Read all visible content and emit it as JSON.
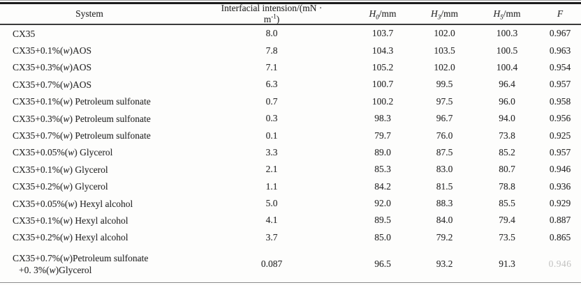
{
  "colors": {
    "text": "#2e2e2e",
    "rule_dark": "#1d1d1d",
    "rule_light": "#9c9c9c"
  },
  "table": {
    "columns": [
      {
        "key": "system",
        "label": "System"
      },
      {
        "key": "tension",
        "label_pre": "Interfacial intension/(mN · m",
        "label_sup": "-1",
        "label_post": ")"
      },
      {
        "key": "h0",
        "label_var": "H",
        "label_sub": "0",
        "label_post": "/mm"
      },
      {
        "key": "h3",
        "label_var": "H",
        "label_sub": "3",
        "label_post": "/mm"
      },
      {
        "key": "h5",
        "label_var": "H",
        "label_sub": "5",
        "label_post": "/mm"
      },
      {
        "key": "f",
        "label": "F"
      }
    ],
    "rows": [
      {
        "system": "CX35",
        "tension": "8.0",
        "h0": "103.7",
        "h3": "102.0",
        "h5": "100.3",
        "f": "0.967"
      },
      {
        "system": "CX35+0.1%(w)AOS",
        "tension": "7.8",
        "h0": "104.3",
        "h3": "103.5",
        "h5": "100.5",
        "f": "0.963"
      },
      {
        "system": "CX35+0.3%(w)AOS",
        "tension": "7.1",
        "h0": "105.2",
        "h3": "102.0",
        "h5": "100.4",
        "f": "0.954"
      },
      {
        "system": "CX35+0.7%(w)AOS",
        "tension": "6.3",
        "h0": "100.7",
        "h3": "99.5",
        "h5": "96.4",
        "f": "0.957"
      },
      {
        "system": "CX35+0.1%(w) Petroleum sulfonate",
        "tension": "0.7",
        "h0": "100.2",
        "h3": "97.5",
        "h5": "96.0",
        "f": "0.958"
      },
      {
        "system": "CX35+0.3%(w) Petroleum sulfonate",
        "tension": "0.3",
        "h0": "98.3",
        "h3": "96.7",
        "h5": "94.0",
        "f": "0.956"
      },
      {
        "system": "CX35+0.7%(w) Petroleum sulfonate",
        "tension": "0.1",
        "h0": "79.7",
        "h3": "76.0",
        "h5": "73.8",
        "f": "0.925"
      },
      {
        "system": "CX35+0.05%(w) Glycerol",
        "tension": "3.3",
        "h0": "89.0",
        "h3": "87.5",
        "h5": "85.2",
        "f": "0.957"
      },
      {
        "system": "CX35+0.1%(w) Glycerol",
        "tension": "2.1",
        "h0": "85.3",
        "h3": "83.0",
        "h5": "80.7",
        "f": "0.946"
      },
      {
        "system": "CX35+0.2%(w) Glycerol",
        "tension": "1.1",
        "h0": "84.2",
        "h3": "81.5",
        "h5": "78.8",
        "f": "0.936"
      },
      {
        "system": "CX35+0.05%(w) Hexyl alcohol",
        "tension": "5.0",
        "h0": "92.0",
        "h3": "88.3",
        "h5": "85.5",
        "f": "0.929"
      },
      {
        "system": "CX35+0.1%(w) Hexyl alcohol",
        "tension": "4.1",
        "h0": "89.5",
        "h3": "84.0",
        "h5": "79.4",
        "f": "0.887"
      },
      {
        "system": "CX35+0.2%(w) Hexyl alcohol",
        "tension": "3.7",
        "h0": "85.0",
        "h3": "79.2",
        "h5": "73.5",
        "f": "0.865"
      },
      {
        "system": "CX35+0.7%(w)Petroleum sulfonate",
        "system_line2": "+0. 3%(w)Glycerol",
        "tension": "0.087",
        "h0": "96.5",
        "h3": "93.2",
        "h5": "91.3",
        "f": "0.946",
        "f_faded": true
      }
    ]
  }
}
